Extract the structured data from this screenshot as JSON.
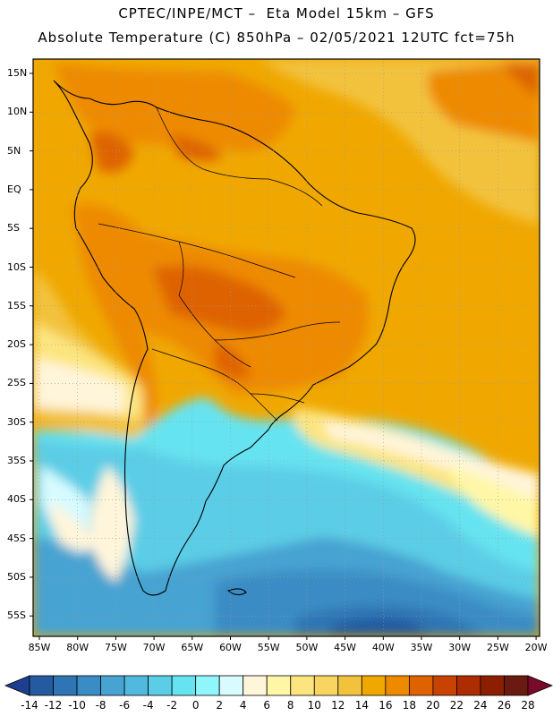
{
  "header": {
    "title_line1": "CPTEC/INPE/MCT –  Eta Model 15km – GFS",
    "title_line2": "Absolute Temperature (C) 850hPa – 02/05/2021 12UTC fct=75h"
  },
  "map": {
    "lat_labels": [
      "15N",
      "10N",
      "5N",
      "EQ",
      "5S",
      "10S",
      "15S",
      "20S",
      "25S",
      "30S",
      "35S",
      "40S",
      "45S",
      "50S",
      "55S"
    ],
    "lon_labels": [
      "85W",
      "80W",
      "75W",
      "70W",
      "65W",
      "60W",
      "55W",
      "50W",
      "45W",
      "40W",
      "35W",
      "30W",
      "25W",
      "20W"
    ]
  },
  "legend": {
    "tick_labels": [
      "-14",
      "-12",
      "-10",
      "-8",
      "-6",
      "-4",
      "-2",
      "0",
      "2",
      "4",
      "6",
      "8",
      "10",
      "12",
      "14",
      "16",
      "18",
      "20",
      "22",
      "24",
      "26",
      "28"
    ],
    "colors": [
      "#1e3f8f",
      "#245aa0",
      "#2f74b4",
      "#3a8cc4",
      "#47a3d2",
      "#52b9de",
      "#5ccde6",
      "#66e3f0",
      "#8ff6fb",
      "#d7fbff",
      "#fff5da",
      "#fff7a6",
      "#fce57f",
      "#f8d461",
      "#f3c23d",
      "#f0a800",
      "#ee8a00",
      "#de6300",
      "#c94300",
      "#ad2d00",
      "#8c1f00",
      "#6b1a12",
      "#7a0a2a"
    ]
  }
}
